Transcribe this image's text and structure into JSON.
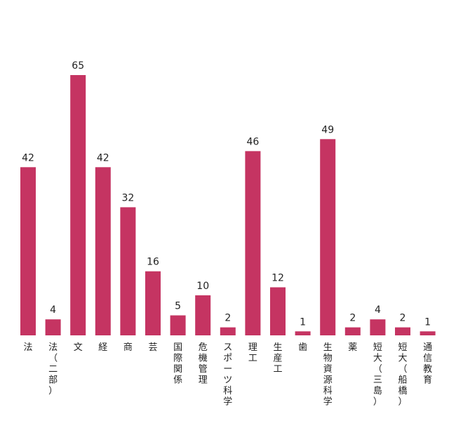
{
  "chart_data": {
    "type": "bar",
    "categories": [
      "法",
      "法（二部）",
      "文",
      "経",
      "商",
      "芸",
      "国際関係",
      "危機管理",
      "スポーツ科学",
      "理工",
      "生産工",
      "歯",
      "生物資源科学",
      "薬",
      "短大（三島）",
      "短大（船橋）",
      "通信教育"
    ],
    "values": [
      42,
      4,
      65,
      42,
      32,
      16,
      5,
      10,
      2,
      46,
      12,
      1,
      49,
      2,
      4,
      2,
      1
    ],
    "title": "",
    "xlabel": "",
    "ylabel": "",
    "ylim": [
      0,
      65
    ],
    "grid": false,
    "legend": "none",
    "category_label_orientation": "vertical",
    "bar_color": "#c53462"
  }
}
